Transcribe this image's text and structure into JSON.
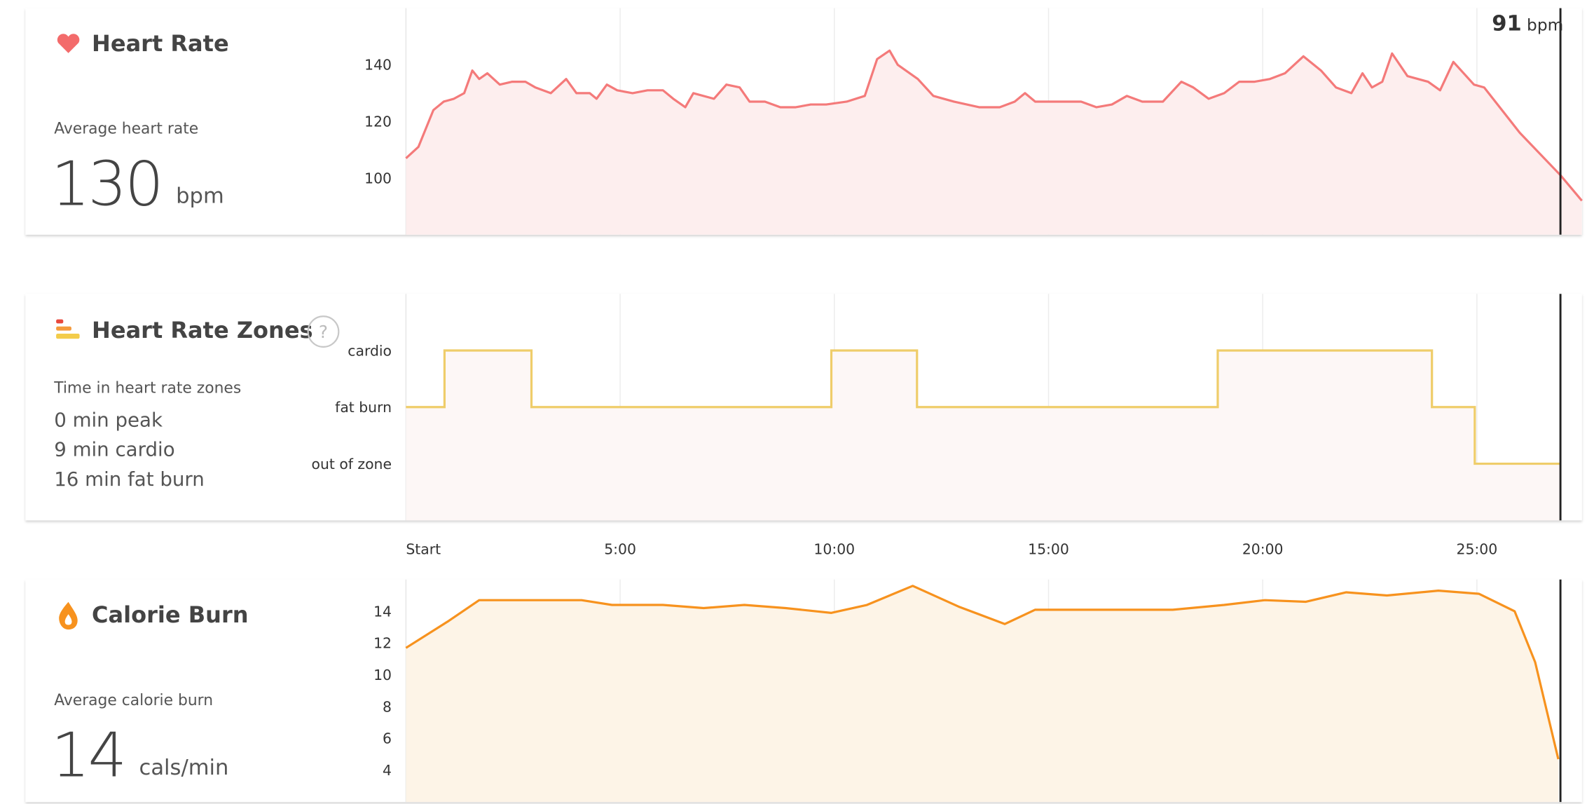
{
  "chart_data": [
    {
      "type": "area",
      "title": "Heart Rate",
      "color": "#f47a7a",
      "fill": "#fdeeee",
      "summary_label": "Average heart rate",
      "summary_value": 130,
      "summary_unit": "bpm",
      "xlim": [
        0,
        27.45
      ],
      "ylim": [
        80,
        160
      ],
      "yticks": [
        100,
        120,
        140
      ],
      "cursor": {
        "x": 26.95,
        "value": 91,
        "unit": "bpm"
      },
      "x": [
        0,
        0.29,
        0.64,
        0.88,
        1.12,
        1.36,
        1.55,
        1.71,
        1.9,
        2.19,
        2.48,
        2.79,
        3.02,
        3.38,
        3.74,
        3.98,
        4.29,
        4.45,
        4.69,
        4.93,
        5.29,
        5.64,
        6.0,
        6.24,
        6.52,
        6.71,
        7.19,
        7.48,
        7.79,
        8.02,
        8.38,
        8.74,
        9.1,
        9.45,
        9.81,
        10.29,
        10.71,
        11.0,
        11.29,
        11.48,
        11.95,
        12.31,
        12.79,
        13.38,
        13.86,
        14.21,
        14.45,
        14.69,
        15.05,
        15.4,
        15.76,
        16.12,
        16.48,
        16.83,
        17.19,
        17.67,
        18.1,
        18.38,
        18.74,
        19.1,
        19.45,
        19.81,
        20.17,
        20.52,
        20.95,
        21.36,
        21.71,
        22.07,
        22.33,
        22.55,
        22.79,
        23.02,
        23.38,
        23.86,
        24.14,
        24.45,
        24.93,
        25.17,
        26.0,
        26.95,
        27.45
      ],
      "values": [
        107,
        111,
        124,
        127,
        128,
        130,
        138,
        135,
        137,
        133,
        134,
        134,
        132,
        130,
        135,
        130,
        130,
        128,
        133,
        131,
        130,
        131,
        131,
        128,
        125,
        130,
        128,
        133,
        132,
        127,
        127,
        125,
        125,
        126,
        126,
        127,
        129,
        142,
        145,
        140,
        135,
        129,
        127,
        125,
        125,
        127,
        130,
        127,
        127,
        127,
        127,
        125,
        126,
        129,
        127,
        127,
        134,
        132,
        128,
        130,
        134,
        134,
        135,
        137,
        143,
        138,
        132,
        130,
        137,
        132,
        134,
        144,
        136,
        134,
        131,
        141,
        133,
        132,
        116,
        101,
        92
      ]
    },
    {
      "type": "step",
      "title": "Heart Rate Zones",
      "color": "#efcd6a",
      "fill": "#fdf7f6",
      "summary_label": "Time in heart rate zones",
      "summary_lines": [
        "0 min peak",
        "9 min cardio",
        "16 min fat burn"
      ],
      "y_categories": [
        "out of zone",
        "fat burn",
        "cardio"
      ],
      "xlim": [
        0,
        27.45
      ],
      "xticks": [
        {
          "value": 0,
          "label": "Start"
        },
        {
          "value": 5,
          "label": "5:00"
        },
        {
          "value": 10,
          "label": "10:00"
        },
        {
          "value": 15,
          "label": "15:00"
        },
        {
          "value": 20,
          "label": "20:00"
        },
        {
          "value": 25,
          "label": "25:00"
        }
      ],
      "x": [
        0,
        0.9,
        2.93,
        9.93,
        11.93,
        18.95,
        23.95,
        24.95,
        26.95
      ],
      "values": [
        "fat burn",
        "cardio",
        "fat burn",
        "cardio",
        "fat burn",
        "cardio",
        "fat burn",
        "out of zone",
        "out of zone"
      ]
    },
    {
      "type": "area",
      "title": "Calorie Burn",
      "color": "#f7921e",
      "fill": "#fdf4e7",
      "summary_label": "Average calorie burn",
      "summary_value": 14,
      "summary_unit": "cals/min",
      "xlim": [
        0,
        27.45
      ],
      "ylim": [
        2,
        16
      ],
      "yticks": [
        4,
        6,
        8,
        10,
        12,
        14
      ],
      "x": [
        0,
        1.0,
        1.71,
        4.1,
        4.81,
        6.0,
        6.95,
        7.9,
        8.86,
        9.93,
        10.76,
        11.83,
        12.9,
        13.98,
        14.69,
        17.9,
        19.1,
        20.05,
        21.0,
        21.95,
        22.9,
        24.1,
        25.05,
        25.88,
        26.36,
        26.9
      ],
      "values": [
        11.7,
        13.4,
        14.7,
        14.7,
        14.4,
        14.4,
        14.2,
        14.4,
        14.2,
        13.9,
        14.4,
        15.6,
        14.3,
        13.2,
        14.1,
        14.1,
        14.4,
        14.7,
        14.6,
        15.2,
        15.0,
        15.3,
        15.1,
        14.0,
        10.8,
        4.7
      ]
    }
  ]
}
